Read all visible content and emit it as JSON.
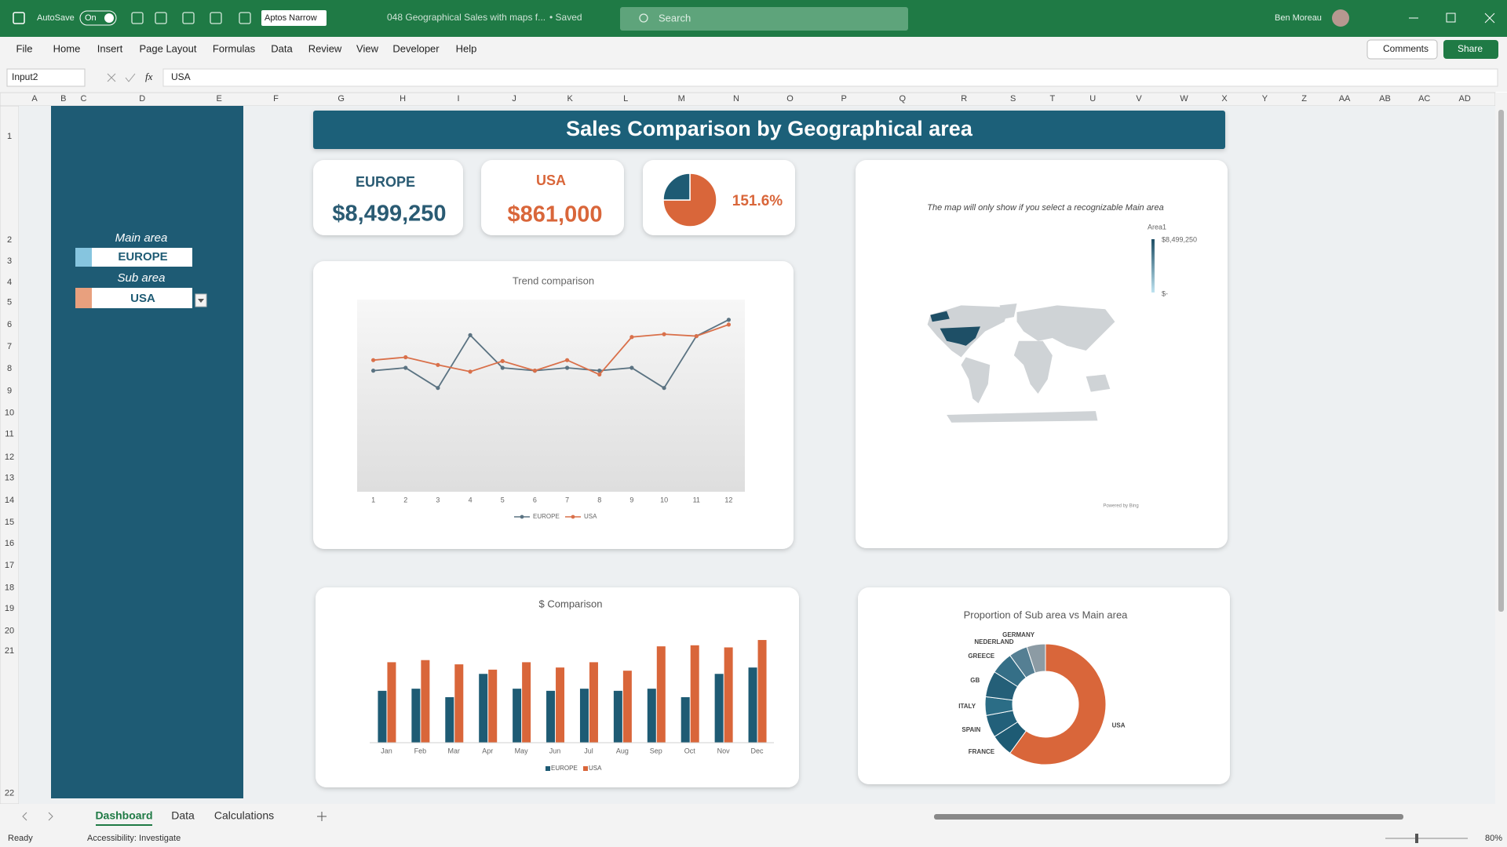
{
  "titlebar": {
    "autosave": "AutoSave",
    "toggle": "On",
    "font": "Aptos Narrow",
    "filename": "048 Geographical Sales with maps f...",
    "saved": "• Saved",
    "search": "Search",
    "user": "Ben Moreau"
  },
  "menu": [
    "File",
    "Home",
    "Insert",
    "Page Layout",
    "Formulas",
    "Data",
    "Review",
    "View",
    "Developer",
    "Help"
  ],
  "ribbon_buttons": {
    "comments": "Comments",
    "share": "Share"
  },
  "formula_bar": {
    "name_box": "Input2",
    "function_icon": "fx",
    "content": "USA"
  },
  "column_headers": [
    "A",
    "B",
    "C",
    "D",
    "E",
    "F",
    "G",
    "H",
    "I",
    "J",
    "K",
    "L",
    "M",
    "N",
    "O",
    "P",
    "Q",
    "R",
    "S",
    "T",
    "U",
    "V",
    "W",
    "X",
    "Y",
    "Z",
    "AA",
    "AB",
    "AC",
    "AD"
  ],
  "row_headers": [
    "1",
    "2",
    "3",
    "4",
    "5",
    "6",
    "7",
    "8",
    "9",
    "10",
    "11",
    "12",
    "13",
    "14",
    "15",
    "16",
    "17",
    "18",
    "19",
    "20",
    "21",
    "22"
  ],
  "selector": {
    "main_label": "Main area",
    "main_value": "EUROPE",
    "sub_label": "Sub area",
    "sub_value": "USA"
  },
  "dashboard": {
    "title": "Sales Comparison by Geographical area",
    "kpi": {
      "main_name": "EUROPE",
      "main_total": "$8,499,250",
      "sub_name": "USA",
      "sub_total": "$861,000",
      "ratio": "151.6%"
    }
  },
  "map": {
    "note": "The map will only show if you select a recognizable Main area",
    "legend_title": "Area1",
    "legend_max": "$8,499,250",
    "legend_min": "$-",
    "credit": "Powered by Bing"
  },
  "chart_data": [
    {
      "type": "pie",
      "values": [
        75,
        25
      ],
      "colors": [
        "#d9663a",
        "#1e5b74"
      ]
    },
    {
      "type": "line",
      "title": "Trend comparison",
      "categories": [
        "1",
        "2",
        "3",
        "4",
        "5",
        "6",
        "7",
        "8",
        "9",
        "10",
        "11",
        "12"
      ],
      "series": [
        {
          "name": "EUROPE",
          "color": "#5b7382",
          "values": [
            63,
            64.5,
            54,
            81.5,
            64.5,
            63,
            64.5,
            63,
            64.5,
            54,
            81,
            89.5
          ]
        },
        {
          "name": "USA",
          "color": "#d9704a",
          "values": [
            68.5,
            70,
            66,
            62.5,
            68,
            63,
            68.5,
            61,
            80.5,
            82,
            81,
            87
          ]
        }
      ],
      "ylim": [
        0,
        100
      ]
    },
    {
      "type": "bar",
      "title": "$ Comparison",
      "categories": [
        "Jan",
        "Feb",
        "Mar",
        "Apr",
        "May",
        "Jun",
        "Jul",
        "Aug",
        "Sep",
        "Oct",
        "Nov",
        "Dec"
      ],
      "series": [
        {
          "name": "EUROPE",
          "color": "#1e5b74",
          "values": [
            49,
            51,
            43,
            65,
            51,
            49,
            51,
            49,
            51,
            43,
            65,
            71
          ]
        },
        {
          "name": "USA",
          "color": "#d9663a",
          "values": [
            76,
            78,
            74,
            69,
            76,
            71,
            76,
            68,
            91,
            92,
            90,
            97
          ]
        }
      ],
      "ylim": [
        0,
        100
      ]
    },
    {
      "type": "donut",
      "title": "Proportion of Sub area vs Main area",
      "categories": [
        "USA",
        "FRANCE",
        "SPAIN",
        "ITALY",
        "GB",
        "GREECE",
        "NEDERLAND",
        "GERMANY"
      ],
      "values": [
        60,
        6,
        6,
        5,
        7,
        6,
        5,
        5
      ],
      "colors": [
        "#d9663a",
        "#1e5b74",
        "#22607a",
        "#2b6d86",
        "#245f78",
        "#356f87",
        "#557f93",
        "#8c9ba4"
      ]
    }
  ],
  "sheet_tabs": [
    "Dashboard",
    "Data",
    "Calculations"
  ],
  "status_bar": {
    "ready": "Ready",
    "accessibility": "Accessibility: Investigate",
    "zoom": "80%"
  }
}
